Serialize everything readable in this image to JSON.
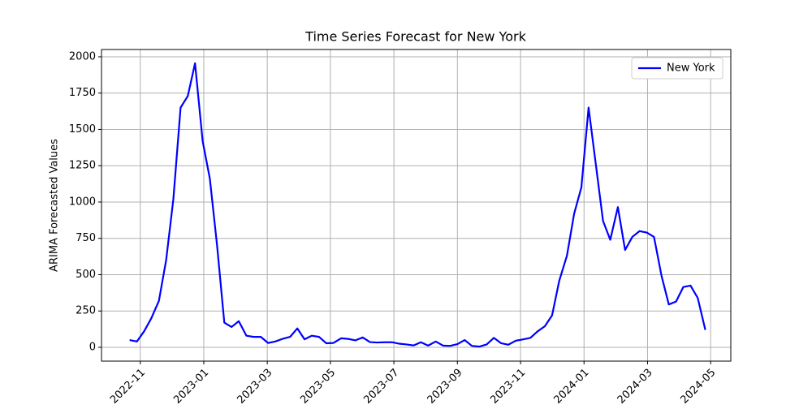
{
  "chart_data": {
    "type": "line",
    "title": "Time Series Forecast for New York",
    "y_label": "ARIMA Forecasted Values",
    "x": [
      2022.805,
      2022.824,
      2022.843,
      2022.862,
      2022.882,
      2022.901,
      2022.92,
      2022.939,
      2022.958,
      2022.977,
      2022.997,
      2023.016,
      2023.035,
      2023.054,
      2023.073,
      2023.092,
      2023.112,
      2023.131,
      2023.15,
      2023.169,
      2023.188,
      2023.207,
      2023.227,
      2023.246,
      2023.265,
      2023.284,
      2023.303,
      2023.322,
      2023.341,
      2023.361,
      2023.38,
      2023.399,
      2023.418,
      2023.437,
      2023.456,
      2023.476,
      2023.495,
      2023.514,
      2023.533,
      2023.552,
      2023.571,
      2023.59,
      2023.61,
      2023.629,
      2023.648,
      2023.667,
      2023.686,
      2023.705,
      2023.725,
      2023.744,
      2023.763,
      2023.782,
      2023.801,
      2023.82,
      2023.84,
      2023.859,
      2023.878,
      2023.897,
      2023.916,
      2023.935,
      2023.955,
      2023.974,
      2023.993,
      2024.012,
      2024.031,
      2024.05,
      2024.069,
      2024.089,
      2024.108,
      2024.127,
      2024.146,
      2024.165,
      2024.184,
      2024.204,
      2024.223,
      2024.242,
      2024.261,
      2024.28,
      2024.299,
      2024.319
    ],
    "series": [
      {
        "name": "New York",
        "color": "#0000ff",
        "values": [
          50,
          40,
          110,
          200,
          320,
          600,
          1020,
          1650,
          1730,
          1955,
          1420,
          1160,
          700,
          170,
          140,
          180,
          80,
          72,
          72,
          30,
          40,
          58,
          72,
          130,
          55,
          80,
          72,
          28,
          30,
          62,
          58,
          48,
          68,
          36,
          33,
          35,
          35,
          25,
          20,
          13,
          35,
          12,
          40,
          12,
          10,
          22,
          50,
          10,
          5,
          20,
          65,
          28,
          18,
          45,
          55,
          65,
          110,
          145,
          220,
          460,
          630,
          920,
          1100,
          1650,
          1260,
          870,
          740,
          965,
          670,
          760,
          800,
          790,
          760,
          490,
          295,
          315,
          415,
          425,
          340,
          120
        ]
      }
    ],
    "xlim": [
      2022.731,
      2024.386
    ],
    "xticks": [
      {
        "value": 2022.833,
        "label": "2022-11"
      },
      {
        "value": 2023.0,
        "label": "2023-01"
      },
      {
        "value": 2023.167,
        "label": "2023-03"
      },
      {
        "value": 2023.333,
        "label": "2023-05"
      },
      {
        "value": 2023.5,
        "label": "2023-07"
      },
      {
        "value": 2023.667,
        "label": "2023-09"
      },
      {
        "value": 2023.833,
        "label": "2023-11"
      },
      {
        "value": 2024.0,
        "label": "2024-01"
      },
      {
        "value": 2024.167,
        "label": "2024-03"
      },
      {
        "value": 2024.333,
        "label": "2024-05"
      }
    ],
    "ylim": [
      -95,
      2050
    ],
    "yticks": [
      0,
      250,
      500,
      750,
      1000,
      1250,
      1500,
      1750,
      2000
    ],
    "grid": true,
    "legend": "upper-right"
  }
}
